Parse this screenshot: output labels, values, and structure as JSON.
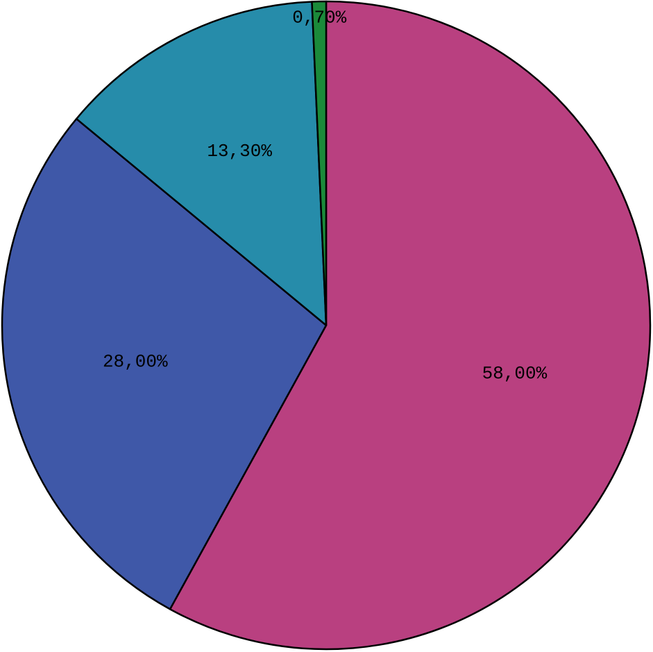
{
  "chart_data": {
    "type": "pie",
    "values": [
      58.0,
      28.0,
      13.3,
      0.7
    ],
    "value_labels": [
      "58,00%",
      "28,00%",
      "13,30%",
      "0,70%"
    ],
    "colors": [
      "#b94080",
      "#3f58a8",
      "#268caa",
      "#1b8a3a"
    ],
    "start_angle": "top",
    "direction": "clockwise"
  }
}
